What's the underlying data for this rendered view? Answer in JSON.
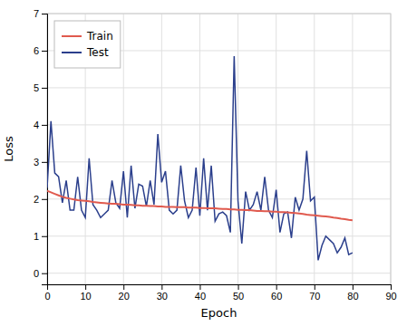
{
  "chart_data": {
    "type": "line",
    "xlabel": "Epoch",
    "ylabel": "Loss",
    "xlim": [
      0,
      90
    ],
    "ylim": [
      -0.3,
      7
    ],
    "xticks": [
      0,
      10,
      20,
      30,
      40,
      50,
      60,
      70,
      80,
      90
    ],
    "yticks": [
      0,
      1,
      2,
      3,
      4,
      5,
      6,
      7
    ],
    "grid": true,
    "legend": "upper left",
    "x": [
      0,
      1,
      2,
      3,
      4,
      5,
      6,
      7,
      8,
      9,
      10,
      11,
      12,
      13,
      14,
      15,
      16,
      17,
      18,
      19,
      20,
      21,
      22,
      23,
      24,
      25,
      26,
      27,
      28,
      29,
      30,
      31,
      32,
      33,
      34,
      35,
      36,
      37,
      38,
      39,
      40,
      41,
      42,
      43,
      44,
      45,
      46,
      47,
      48,
      49,
      50,
      51,
      52,
      53,
      54,
      55,
      56,
      57,
      58,
      59,
      60,
      61,
      62,
      63,
      64,
      65,
      66,
      67,
      68,
      69,
      70,
      71,
      72,
      73,
      74,
      75,
      76,
      77,
      78,
      79,
      80
    ],
    "series": [
      {
        "name": "Train",
        "color": "#e05a4e",
        "values": [
          2.22,
          2.18,
          2.14,
          2.1,
          2.06,
          2.03,
          2.01,
          1.99,
          1.97,
          1.96,
          1.95,
          1.94,
          1.92,
          1.91,
          1.9,
          1.89,
          1.88,
          1.87,
          1.87,
          1.86,
          1.85,
          1.85,
          1.84,
          1.83,
          1.83,
          1.82,
          1.82,
          1.81,
          1.81,
          1.8,
          1.8,
          1.79,
          1.79,
          1.79,
          1.78,
          1.78,
          1.78,
          1.77,
          1.77,
          1.77,
          1.76,
          1.76,
          1.75,
          1.75,
          1.75,
          1.74,
          1.73,
          1.73,
          1.72,
          1.72,
          1.71,
          1.71,
          1.7,
          1.7,
          1.69,
          1.68,
          1.68,
          1.67,
          1.67,
          1.66,
          1.66,
          1.65,
          1.65,
          1.64,
          1.63,
          1.62,
          1.61,
          1.6,
          1.58,
          1.57,
          1.56,
          1.55,
          1.54,
          1.53,
          1.52,
          1.5,
          1.49,
          1.47,
          1.46,
          1.44,
          1.43
        ]
      },
      {
        "name": "Test",
        "color": "#2b3f8c",
        "values": [
          2.3,
          4.1,
          2.7,
          2.6,
          1.9,
          2.5,
          1.7,
          1.7,
          2.6,
          1.7,
          1.5,
          3.1,
          1.85,
          1.7,
          1.5,
          1.6,
          1.7,
          2.5,
          1.9,
          1.75,
          2.75,
          1.5,
          2.9,
          1.75,
          2.4,
          2.35,
          1.8,
          2.5,
          1.85,
          3.75,
          2.45,
          2.75,
          1.7,
          1.6,
          1.7,
          2.9,
          1.95,
          1.5,
          1.7,
          2.85,
          1.55,
          3.1,
          1.7,
          2.9,
          1.4,
          1.6,
          1.65,
          1.55,
          1.1,
          5.85,
          1.95,
          0.8,
          2.2,
          1.7,
          1.85,
          2.2,
          1.7,
          2.6,
          1.7,
          1.5,
          2.25,
          1.1,
          1.6,
          1.65,
          0.95,
          2.05,
          1.7,
          2.0,
          3.3,
          1.95,
          2.05,
          0.35,
          0.75,
          1.0,
          0.9,
          0.8,
          0.55,
          0.7,
          0.95,
          0.5,
          0.55
        ]
      }
    ]
  }
}
